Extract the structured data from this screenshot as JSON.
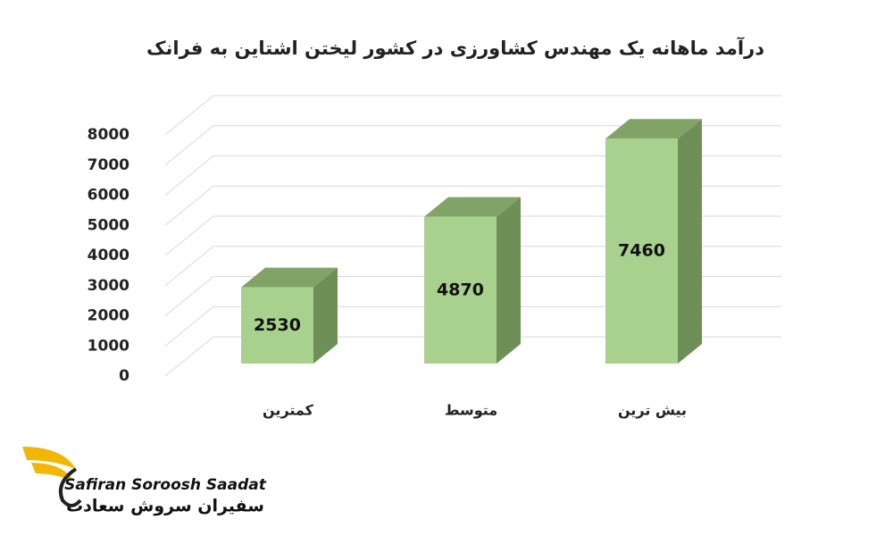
{
  "chart_data": {
    "type": "bar3d",
    "title": "درآمد ماهانه یک مهندس کشاورزی در کشور لیختن اشتاین به فرانک",
    "categories": [
      "کمترین",
      "متوسط",
      "بیش ترین"
    ],
    "values": [
      2530,
      4870,
      7460
    ],
    "color": "#a9d18e",
    "ylim": [
      0,
      8000
    ],
    "yticks": [
      0,
      1000,
      2000,
      3000,
      4000,
      5000,
      6000,
      7000,
      8000
    ],
    "grid": true
  },
  "logo": {
    "name_en": "Safiran Soroosh Saadat",
    "name_fa": "سفیران سروش سعادت"
  }
}
